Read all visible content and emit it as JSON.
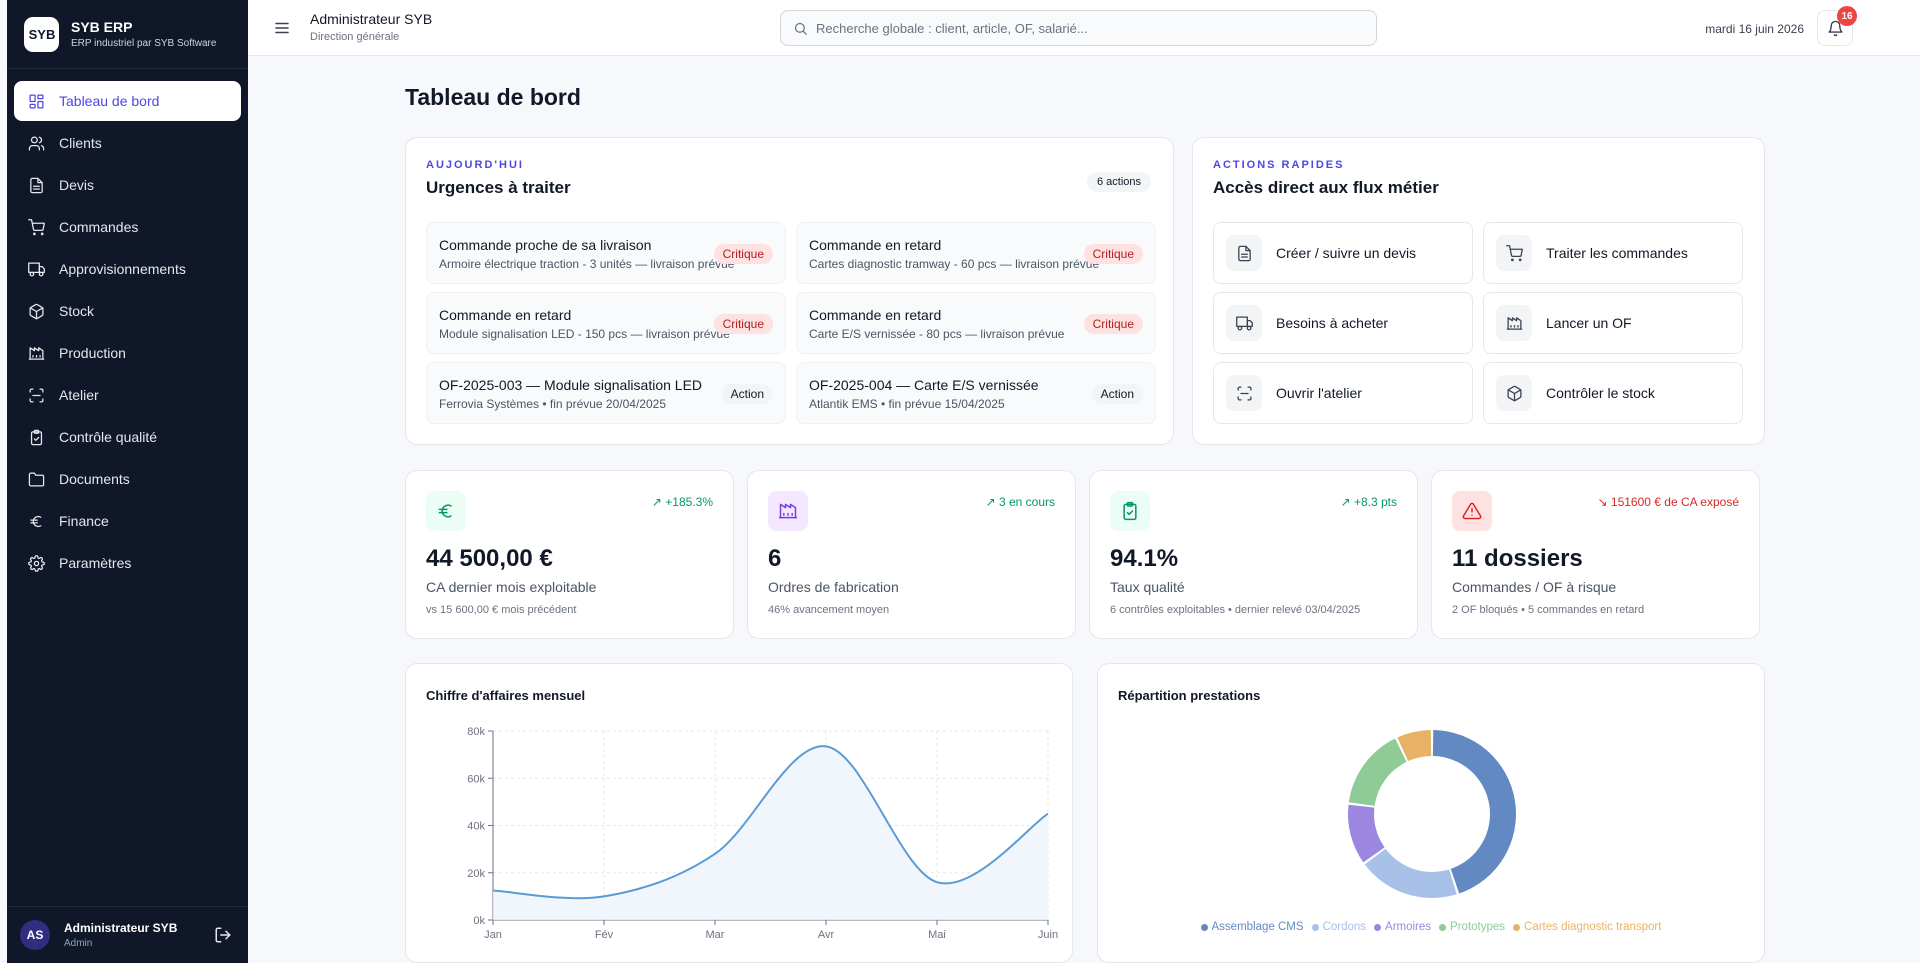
{
  "app": {
    "name": "SYB ERP",
    "tagline": "ERP industriel par SYB Software",
    "logo_text": "SYB"
  },
  "sidebar": {
    "items": [
      {
        "label": "Tableau de bord",
        "icon": "dashboard-icon",
        "active": true
      },
      {
        "label": "Clients",
        "icon": "users-icon"
      },
      {
        "label": "Devis",
        "icon": "file-icon"
      },
      {
        "label": "Commandes",
        "icon": "cart-icon"
      },
      {
        "label": "Approvisionnements",
        "icon": "truck-icon"
      },
      {
        "label": "Stock",
        "icon": "box-icon"
      },
      {
        "label": "Production",
        "icon": "factory-icon"
      },
      {
        "label": "Atelier",
        "icon": "scan-icon"
      },
      {
        "label": "Contrôle qualité",
        "icon": "clipboard-check-icon"
      },
      {
        "label": "Documents",
        "icon": "folder-icon"
      },
      {
        "label": "Finance",
        "icon": "euro-icon"
      },
      {
        "label": "Paramètres",
        "icon": "gear-icon"
      }
    ],
    "user": {
      "initials": "AS",
      "name": "Administrateur SYB",
      "role": "Admin"
    }
  },
  "topbar": {
    "title": "Administrateur SYB",
    "subtitle": "Direction générale",
    "search_placeholder": "Recherche globale : client, article, OF, salarié...",
    "date": "mardi 16 juin 2026",
    "notifications": "16"
  },
  "page_title": "Tableau de bord",
  "urgences": {
    "eyebrow": "AUJOURD'HUI",
    "title": "Urgences à traiter",
    "count": "6 actions",
    "items": [
      {
        "title": "Commande proche de sa livraison",
        "sub": "Armoire électrique traction - 3 unités — livraison prévue",
        "tag": "Critique",
        "kind": "crit"
      },
      {
        "title": "Commande en retard",
        "sub": "Cartes diagnostic tramway - 60 pcs — livraison prévue",
        "tag": "Critique",
        "kind": "crit"
      },
      {
        "title": "Commande en retard",
        "sub": "Module signalisation LED - 150 pcs — livraison prévue",
        "tag": "Critique",
        "kind": "crit"
      },
      {
        "title": "Commande en retard",
        "sub": "Carte E/S vernissée - 80 pcs — livraison prévue",
        "tag": "Critique",
        "kind": "crit"
      },
      {
        "title": "OF-2025-003 — Module signalisation LED",
        "sub": "Ferrovia Systèmes • fin prévue 20/04/2025",
        "tag": "Action",
        "kind": "act"
      },
      {
        "title": "OF-2025-004 — Carte E/S vernissée",
        "sub": "Atlantik EMS • fin prévue 15/04/2025",
        "tag": "Action",
        "kind": "act"
      }
    ]
  },
  "actions": {
    "eyebrow": "ACTIONS RAPIDES",
    "title": "Accès direct aux flux métier",
    "items": [
      {
        "label": "Créer / suivre un devis",
        "icon": "file-icon"
      },
      {
        "label": "Traiter les commandes",
        "icon": "cart-icon"
      },
      {
        "label": "Besoins à acheter",
        "icon": "truck-icon"
      },
      {
        "label": "Lancer un OF",
        "icon": "factory-icon"
      },
      {
        "label": "Ouvrir l'atelier",
        "icon": "scan-icon"
      },
      {
        "label": "Contrôler le stock",
        "icon": "box-icon"
      }
    ]
  },
  "kpis": [
    {
      "icon": "euro-icon",
      "delta": "↗ +185.3%",
      "value": "44 500,00 €",
      "label": "CA dernier mois exploitable",
      "sub": "vs 15 600,00 € mois précédent",
      "color": "#059669",
      "bg": "#ecfdf5",
      "delta_color": "#059669"
    },
    {
      "icon": "factory-icon",
      "delta": "↗ 3 en cours",
      "value": "6",
      "label": "Ordres de fabrication",
      "sub": "46% avancement moyen",
      "color": "#7c3aed",
      "bg": "#f3e8ff",
      "delta_color": "#059669"
    },
    {
      "icon": "clipboard-check-icon",
      "delta": "↗ +8.3 pts",
      "value": "94.1%",
      "label": "Taux qualité",
      "sub": "6 contrôles exploitables • dernier relevé 03/04/2025",
      "color": "#059669",
      "bg": "#ecfdf5",
      "delta_color": "#059669"
    },
    {
      "icon": "alert-icon",
      "delta": "↘ 151600 € de CA exposé",
      "value": "11 dossiers",
      "label": "Commandes / OF à risque",
      "sub": "2 OF bloqués • 5 commandes en retard",
      "color": "#dc2626",
      "bg": "#fee2e2",
      "delta_color": "#dc2626"
    }
  ],
  "revenue_chart": {
    "title": "Chiffre d'affaires mensuel",
    "chart_data": {
      "type": "area",
      "categories": [
        "Jan",
        "Fév",
        "Mar",
        "Avr",
        "Mai",
        "Juin"
      ],
      "values": [
        12500,
        10000,
        28000,
        73500,
        16000,
        45000
      ],
      "ylim": [
        0,
        80000
      ],
      "yticks": [
        "0k",
        "20k",
        "40k",
        "60k",
        "80k"
      ],
      "grid": true,
      "color": "#5b9bd5"
    }
  },
  "donut_chart": {
    "title": "Répartition prestations",
    "chart_data": {
      "type": "pie",
      "labels": [
        "Assemblage CMS",
        "Cordons",
        "Armoires",
        "Prototypes",
        "Cartes diagnostic transport"
      ],
      "values": [
        45,
        20,
        12,
        16,
        7
      ],
      "colors": [
        "#6389c3",
        "#a7c1e8",
        "#9b86e0",
        "#8fcb97",
        "#e8b266"
      ],
      "legend": "bottom"
    }
  }
}
